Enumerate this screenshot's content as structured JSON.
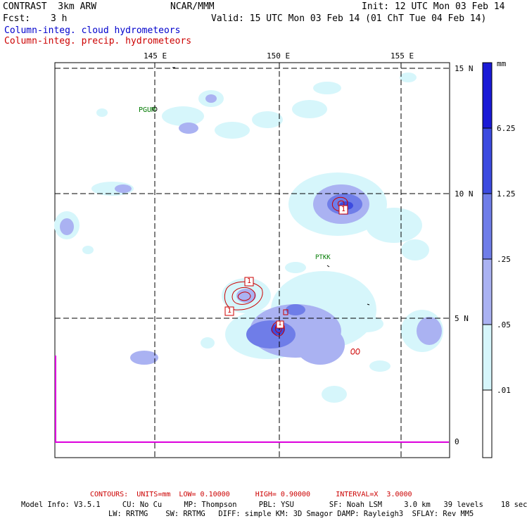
{
  "header": {
    "model": "CONTRAST  3km ARW",
    "center": "NCAR/MMM",
    "init": "Init: 12 UTC Mon 03 Feb 14",
    "fcst_label": "Fcst:",
    "fcst_value": "3 h",
    "valid": "Valid: 15 UTC Mon 03 Feb 14 (01 ChT Tue 04 Feb 14)",
    "field1": "Column-integ. cloud hydrometeors",
    "field2": "Column-integ. precip. hydrometeors"
  },
  "map": {
    "lon_labels": [
      "145 E",
      "150 E",
      "155 E"
    ],
    "lat_labels": [
      "15 N",
      "10 N",
      "5 N",
      "0"
    ],
    "stations": [
      "PGUM",
      "PTKK"
    ]
  },
  "colorbar": {
    "unit": "mm",
    "labels": [
      "6.25",
      "1.25",
      ".25",
      ".05",
      ".01"
    ],
    "colors": [
      "#1a1ad6",
      "#3c4be0",
      "#6f7de8",
      "#aab2f2",
      "#d6f6fb",
      "#ffffff"
    ]
  },
  "footer": {
    "contours": "CONTOURS:  UNITS=mm  LOW= 0.10000      HIGH= 0.90000      INTERVAL=X  3.0000",
    "model_info": "Model Info: V3.5.1     CU: No Cu     MP: Thompson     PBL: YSU        SF: Noah LSM     3.0 km   39 levels    18 sec",
    "model_info2": "LW: RRTMG    SW: RRTMG   DIFF: simple KM: 3D Smagor DAMP: Rayleigh3  SFLAY: Rev MM5"
  },
  "contour_labels": [
    "1",
    "1",
    "1",
    "1"
  ]
}
